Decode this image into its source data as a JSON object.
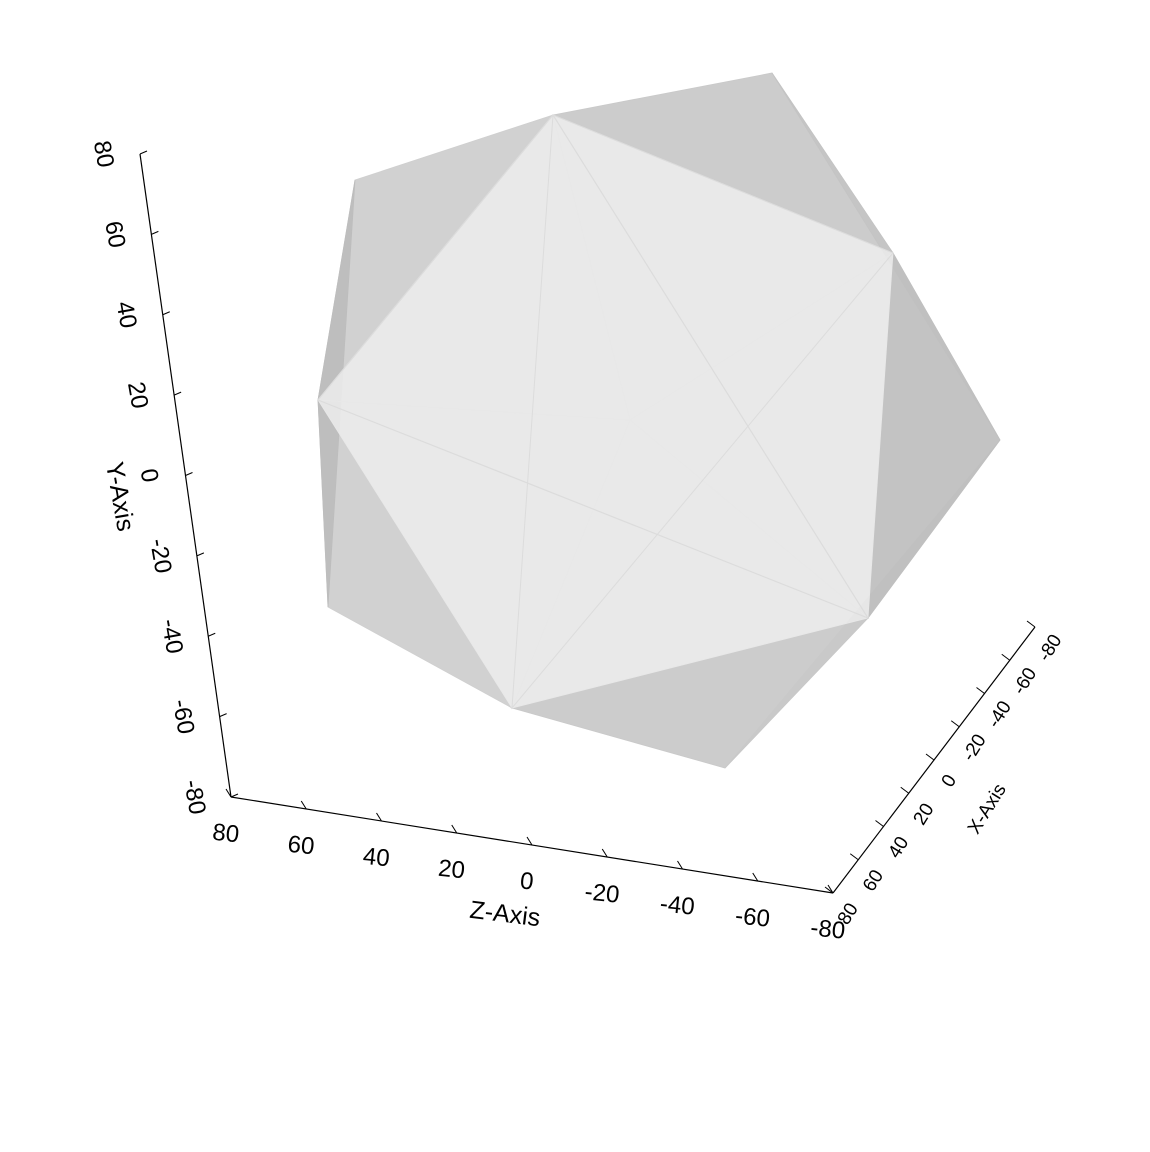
{
  "chart_data": {
    "type": "3d-mesh",
    "shape": "icosahedron",
    "face_color": "#d4d4d4",
    "face_highlight_color": "#eeeeee",
    "face_shadow_color": "#9a9a9a",
    "axis_color": "#000000",
    "grid": false,
    "legend": "none",
    "axes": {
      "y": {
        "label": "Y-Axis",
        "range": [
          -80,
          80
        ],
        "ticks": [
          "80",
          "60",
          "40",
          "20",
          "0",
          "-20",
          "-40",
          "-60",
          "-80"
        ]
      },
      "z": {
        "label": "Z-Axis",
        "range": [
          80,
          -80
        ],
        "ticks": [
          "80",
          "60",
          "40",
          "20",
          "0",
          "-20",
          "-40",
          "-60",
          "-80"
        ]
      },
      "x": {
        "label": "X-Axis",
        "range": [
          80,
          -80
        ],
        "ticks": [
          "80",
          "60",
          "40",
          "20",
          "0",
          "-20",
          "-40",
          "-60",
          "-80"
        ]
      }
    }
  }
}
